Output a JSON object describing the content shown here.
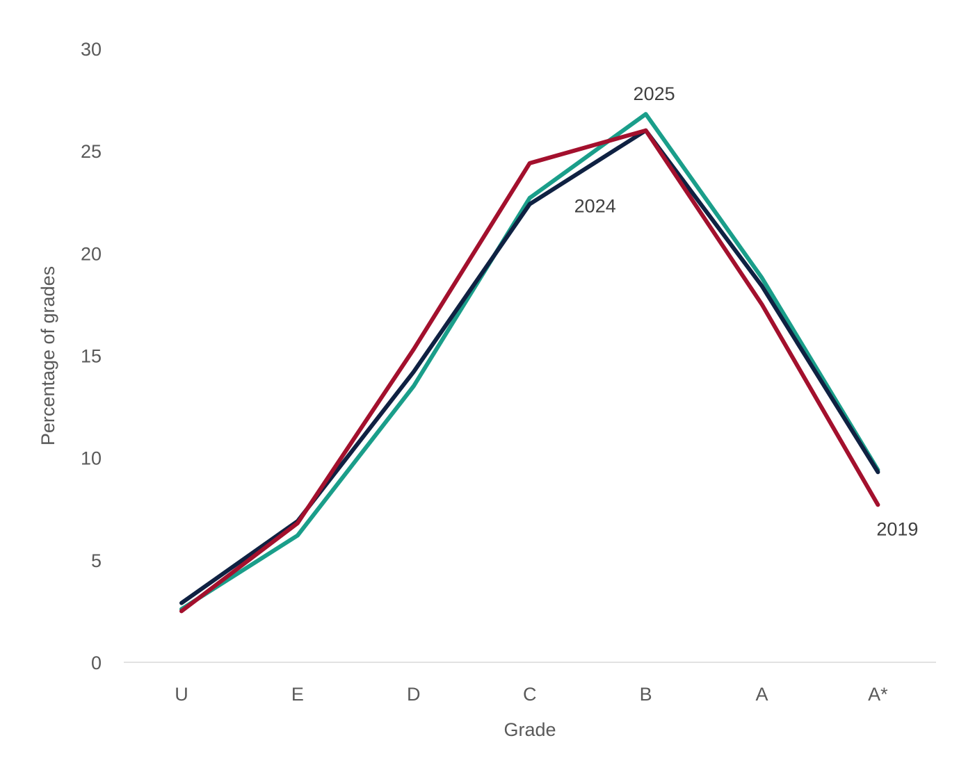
{
  "chart_data": {
    "type": "line",
    "categories": [
      "U",
      "E",
      "D",
      "C",
      "B",
      "A",
      "A*"
    ],
    "xlabel": "Grade",
    "ylabel": "Percentage of grades",
    "ylim": [
      0,
      30
    ],
    "yticks": [
      0,
      5,
      10,
      15,
      20,
      25,
      30
    ],
    "grid": false,
    "legend": "none (series labelled directly on the lines)",
    "series": [
      {
        "name": "2025",
        "color": "#1a9e8a",
        "values": [
          2.6,
          6.2,
          13.5,
          22.7,
          26.8,
          18.8,
          9.4
        ]
      },
      {
        "name": "2024",
        "color": "#0f2142",
        "values": [
          2.9,
          6.9,
          14.2,
          22.4,
          26.0,
          18.4,
          9.3
        ]
      },
      {
        "name": "2019",
        "color": "#a3102d",
        "values": [
          2.5,
          6.8,
          15.3,
          24.4,
          26.0,
          17.5,
          7.7
        ]
      }
    ]
  }
}
